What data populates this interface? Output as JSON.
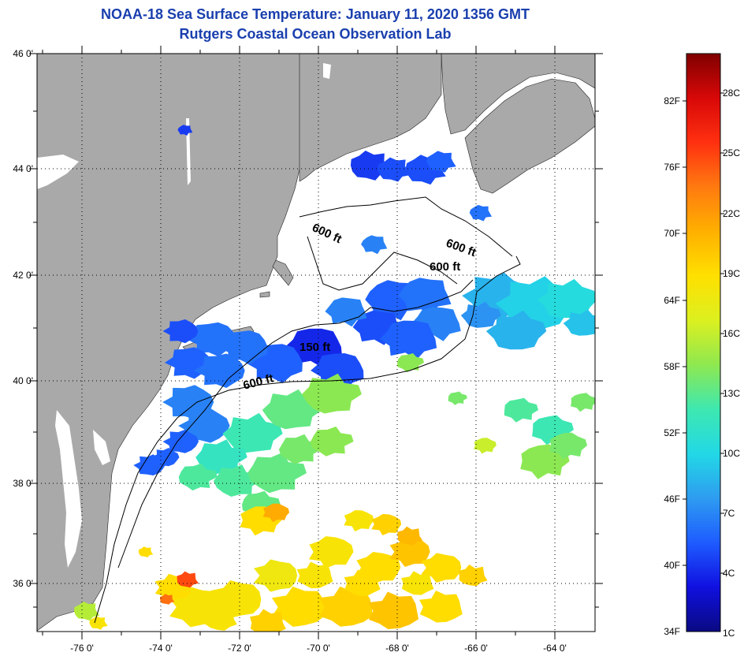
{
  "title": "NOAA-18 Sea Surface Temperature:  January 11, 2020 1356 GMT",
  "subtitle": "Rutgers Coastal Ocean Observation Lab",
  "map": {
    "lat_labels": [
      "46 0'",
      "44 0'",
      "42 0'",
      "40 0'",
      "38 0'",
      "36 0'"
    ],
    "lon_labels": [
      "-76 0'",
      "-74 0'",
      "-72 0'",
      "-70 0'",
      "-68 0'",
      "-66 0'",
      "-64 0'"
    ],
    "contour_labels": [
      "600 ft",
      "600 ft",
      "600 ft",
      "150 ft",
      "600 ft"
    ],
    "colors": {
      "land": "#a9a9a9",
      "water": "#ffffff",
      "grid": "#000000"
    }
  },
  "colorbar": {
    "fahrenheit_labels": [
      "82F",
      "76F",
      "70F",
      "64F",
      "58F",
      "52F",
      "46F",
      "40F",
      "34F"
    ],
    "celsius_labels": [
      "28C",
      "25C",
      "22C",
      "19C",
      "16C",
      "13C",
      "10C",
      "7C",
      "4C",
      "1C"
    ],
    "stops": [
      "#0a0a82",
      "#1010e0",
      "#1e5cff",
      "#2e9cf0",
      "#22d8e6",
      "#3ee8b0",
      "#8ee850",
      "#dcf020",
      "#ffe000",
      "#ffb000",
      "#ff7a10",
      "#ff3010",
      "#d80808",
      "#800000"
    ]
  }
}
